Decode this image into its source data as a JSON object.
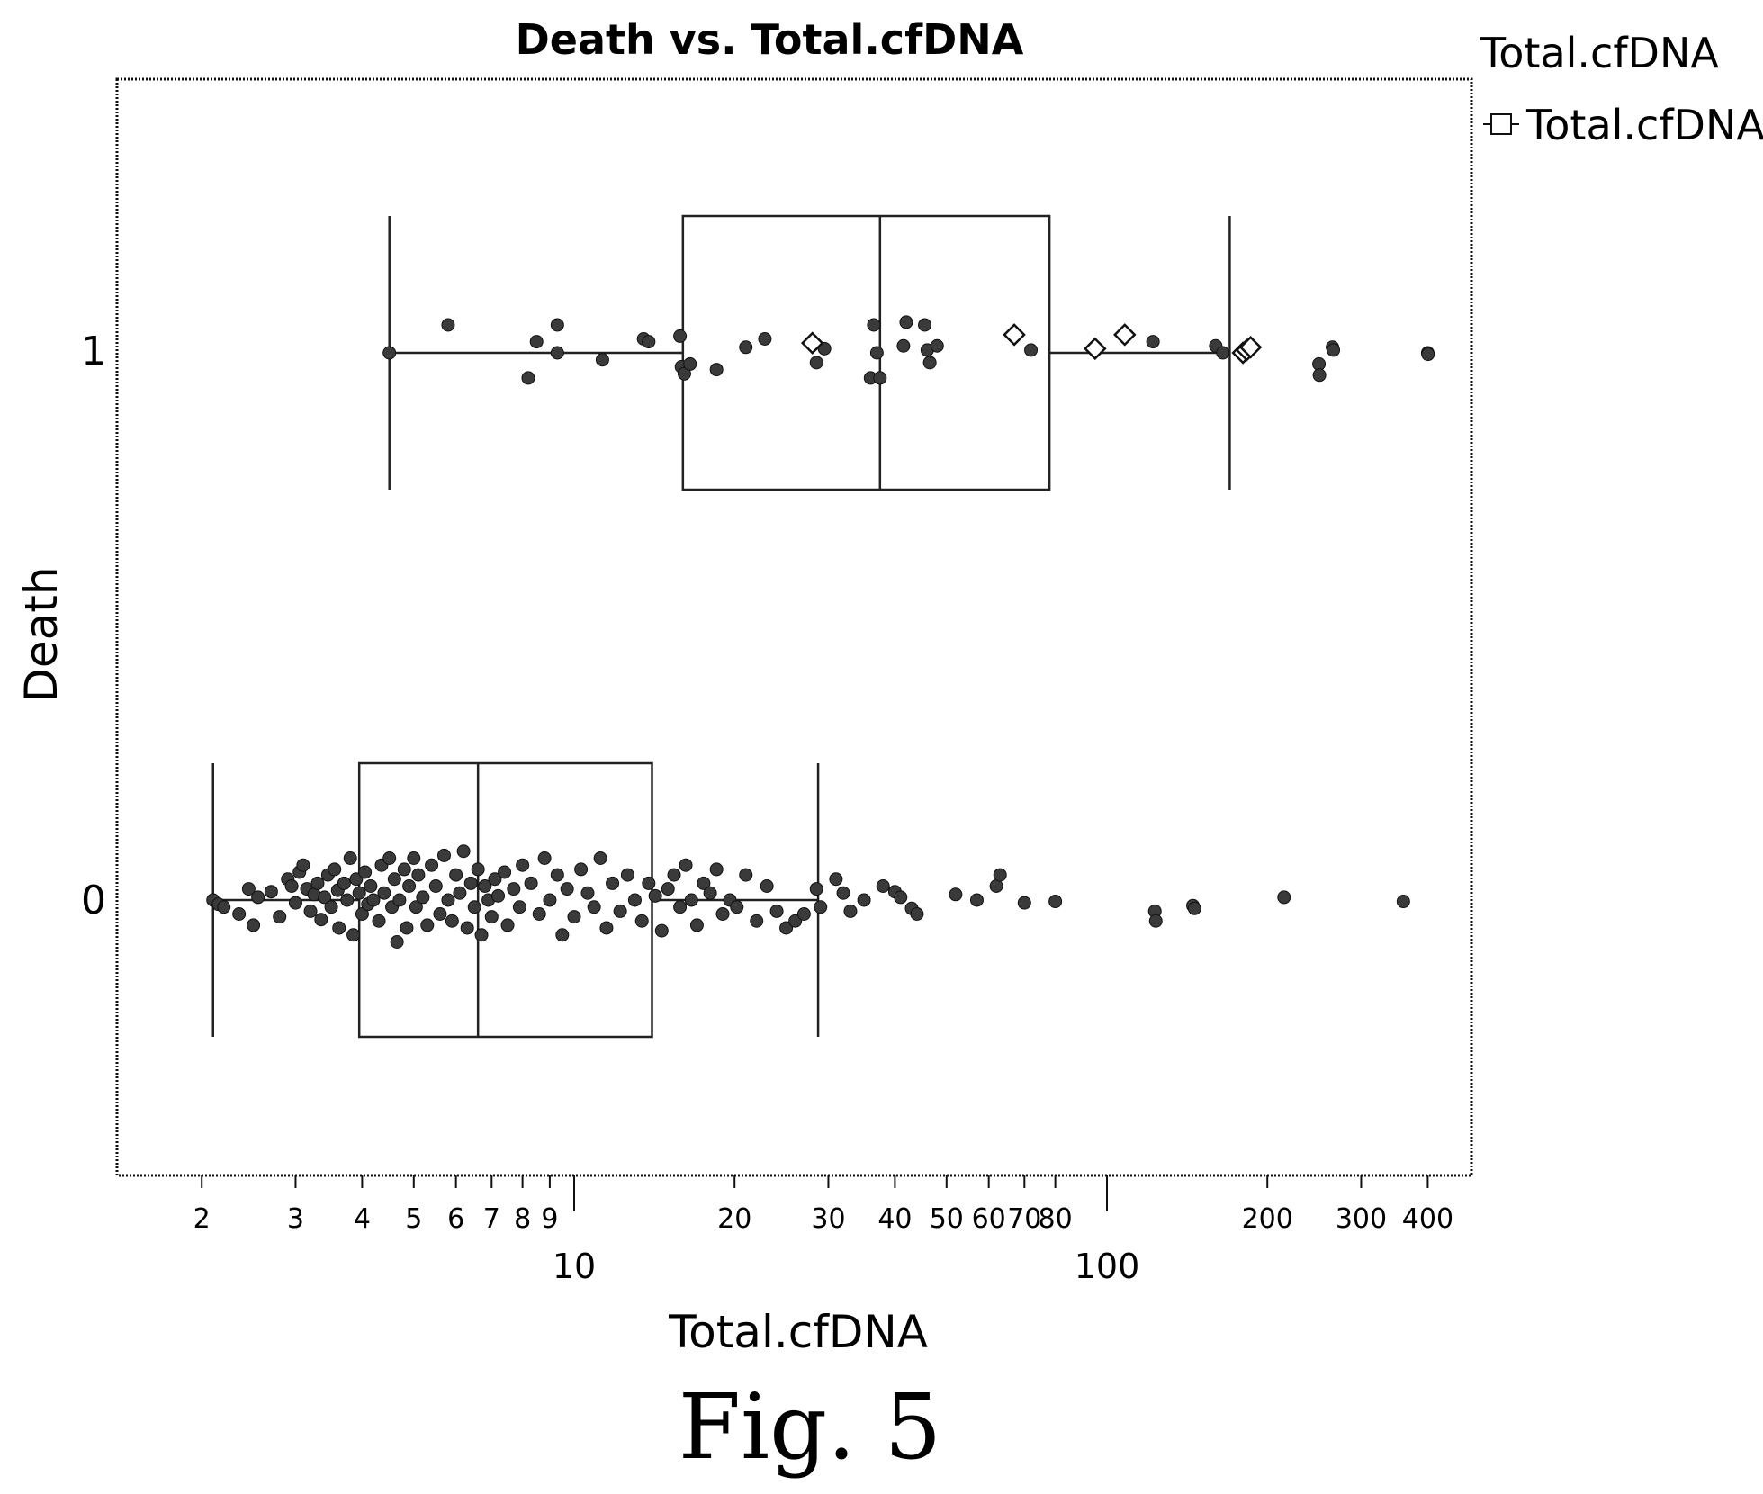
{
  "chart_data": {
    "type": "box",
    "title": "Death vs. Total.cfDNA",
    "xlabel": "Total.cfDNA",
    "ylabel": "Death",
    "xscale": "log",
    "xlim": [
      1.7,
      450
    ],
    "x_minor_ticks": [
      2,
      3,
      4,
      5,
      6,
      7,
      8,
      9,
      20,
      30,
      40,
      50,
      60,
      70,
      80,
      200,
      300,
      400
    ],
    "x_minor_labels": [
      "2",
      "3",
      "4",
      "5",
      "6",
      "7",
      "8",
      "9",
      "20",
      "30",
      "40",
      "50",
      "60",
      "70",
      "80",
      "200",
      "300",
      "400"
    ],
    "x_major_ticks": [
      10,
      100
    ],
    "x_major_labels": [
      "10",
      "100"
    ],
    "categories": [
      "0",
      "1"
    ],
    "legend": {
      "title": "Total.cfDNA",
      "entry": "Total.cfDNA",
      "position": "top-right"
    },
    "boxes": [
      {
        "category": "0",
        "whisker_low": 2.1,
        "q1": 3.95,
        "median": 6.6,
        "q3": 14.0,
        "whisker_high": 28.7
      },
      {
        "category": "1",
        "whisker_low": 4.5,
        "q1": 16.0,
        "median": 37.5,
        "q3": 78.0,
        "whisker_high": 170.0
      }
    ],
    "points": {
      "0": [
        [
          2.1,
          0
        ],
        [
          2.15,
          -0.03
        ],
        [
          2.2,
          -0.05
        ],
        [
          2.35,
          -0.1
        ],
        [
          2.45,
          0.08
        ],
        [
          2.5,
          -0.18
        ],
        [
          2.55,
          0.02
        ],
        [
          2.7,
          0.06
        ],
        [
          2.8,
          -0.12
        ],
        [
          2.9,
          0.15
        ],
        [
          2.95,
          0.1
        ],
        [
          3.0,
          -0.02
        ],
        [
          3.05,
          0.2
        ],
        [
          3.1,
          0.25
        ],
        [
          3.15,
          0.08
        ],
        [
          3.2,
          -0.08
        ],
        [
          3.25,
          0.04
        ],
        [
          3.3,
          0.12
        ],
        [
          3.35,
          -0.14
        ],
        [
          3.4,
          0.02
        ],
        [
          3.45,
          0.18
        ],
        [
          3.5,
          -0.05
        ],
        [
          3.55,
          0.22
        ],
        [
          3.6,
          0.07
        ],
        [
          3.62,
          -0.2
        ],
        [
          3.7,
          0.12
        ],
        [
          3.75,
          0.0
        ],
        [
          3.8,
          0.3
        ],
        [
          3.85,
          -0.25
        ],
        [
          3.9,
          0.15
        ],
        [
          3.95,
          0.05
        ],
        [
          4.0,
          -0.1
        ],
        [
          4.05,
          0.2
        ],
        [
          4.1,
          -0.03
        ],
        [
          4.15,
          0.1
        ],
        [
          4.2,
          0.0
        ],
        [
          4.3,
          -0.15
        ],
        [
          4.35,
          0.25
        ],
        [
          4.4,
          0.05
        ],
        [
          4.5,
          0.3
        ],
        [
          4.55,
          -0.05
        ],
        [
          4.6,
          0.15
        ],
        [
          4.65,
          -0.3
        ],
        [
          4.7,
          0.0
        ],
        [
          4.8,
          0.22
        ],
        [
          4.85,
          -0.2
        ],
        [
          4.9,
          0.1
        ],
        [
          5.0,
          0.3
        ],
        [
          5.05,
          -0.05
        ],
        [
          5.1,
          0.18
        ],
        [
          5.2,
          0.02
        ],
        [
          5.3,
          -0.18
        ],
        [
          5.4,
          0.25
        ],
        [
          5.5,
          0.1
        ],
        [
          5.6,
          -0.1
        ],
        [
          5.7,
          0.32
        ],
        [
          5.8,
          0.0
        ],
        [
          5.9,
          -0.15
        ],
        [
          6.0,
          0.18
        ],
        [
          6.1,
          0.05
        ],
        [
          6.2,
          0.35
        ],
        [
          6.3,
          -0.2
        ],
        [
          6.4,
          0.12
        ],
        [
          6.5,
          -0.05
        ],
        [
          6.6,
          0.22
        ],
        [
          6.7,
          -0.25
        ],
        [
          6.8,
          0.1
        ],
        [
          6.9,
          0.0
        ],
        [
          7.0,
          -0.12
        ],
        [
          7.1,
          0.15
        ],
        [
          7.2,
          0.03
        ],
        [
          7.4,
          0.2
        ],
        [
          7.5,
          -0.18
        ],
        [
          7.7,
          0.08
        ],
        [
          7.9,
          -0.05
        ],
        [
          8.0,
          0.25
        ],
        [
          8.3,
          0.12
        ],
        [
          8.6,
          -0.1
        ],
        [
          8.8,
          0.3
        ],
        [
          9.0,
          0.0
        ],
        [
          9.3,
          0.18
        ],
        [
          9.5,
          -0.25
        ],
        [
          9.7,
          0.08
        ],
        [
          10.0,
          -0.12
        ],
        [
          10.3,
          0.22
        ],
        [
          10.6,
          0.05
        ],
        [
          10.9,
          -0.05
        ],
        [
          11.2,
          0.3
        ],
        [
          11.5,
          -0.2
        ],
        [
          11.8,
          0.12
        ],
        [
          12.2,
          -0.08
        ],
        [
          12.6,
          0.18
        ],
        [
          13.0,
          0.0
        ],
        [
          13.4,
          -0.15
        ],
        [
          13.8,
          0.12
        ],
        [
          14.2,
          0.03
        ],
        [
          14.6,
          -0.22
        ],
        [
          15.0,
          0.08
        ],
        [
          15.4,
          0.18
        ],
        [
          15.8,
          -0.05
        ],
        [
          16.2,
          0.25
        ],
        [
          16.6,
          0.0
        ],
        [
          17.0,
          -0.18
        ],
        [
          17.5,
          0.12
        ],
        [
          18.0,
          0.05
        ],
        [
          18.5,
          0.22
        ],
        [
          19.0,
          -0.1
        ],
        [
          19.6,
          0.0
        ],
        [
          20.2,
          -0.05
        ],
        [
          21.0,
          0.18
        ],
        [
          22.0,
          -0.15
        ],
        [
          23.0,
          0.1
        ],
        [
          24.0,
          -0.08
        ],
        [
          25.0,
          -0.2
        ],
        [
          26.0,
          -0.15
        ],
        [
          27.0,
          -0.1
        ],
        [
          28.5,
          0.08
        ],
        [
          29.0,
          -0.05
        ],
        [
          31.0,
          0.15
        ],
        [
          32.0,
          0.05
        ],
        [
          33.0,
          -0.08
        ],
        [
          35.0,
          0.0
        ],
        [
          38.0,
          0.1
        ],
        [
          40.0,
          0.06
        ],
        [
          41.0,
          0.02
        ],
        [
          43.0,
          -0.06
        ],
        [
          44.0,
          -0.1
        ],
        [
          52.0,
          0.04
        ],
        [
          57.0,
          0.0
        ],
        [
          62.0,
          0.1
        ],
        [
          63.0,
          0.18
        ],
        [
          70.0,
          -0.02
        ],
        [
          80.0,
          -0.01
        ],
        [
          123.0,
          -0.08
        ],
        [
          123.5,
          -0.15
        ],
        [
          145.0,
          -0.04
        ],
        [
          146.0,
          -0.06
        ],
        [
          215.0,
          0.02
        ],
        [
          360.0,
          -0.01
        ]
      ],
      "1": [
        [
          4.5,
          0.0
        ],
        [
          5.8,
          0.2
        ],
        [
          8.2,
          -0.18
        ],
        [
          8.5,
          0.08
        ],
        [
          9.3,
          0.2
        ],
        [
          9.3,
          0.0
        ],
        [
          11.3,
          -0.05
        ],
        [
          13.5,
          0.1
        ],
        [
          13.8,
          0.08
        ],
        [
          15.8,
          0.12
        ],
        [
          15.9,
          -0.1
        ],
        [
          16.1,
          -0.15
        ],
        [
          16.5,
          -0.08
        ],
        [
          18.5,
          -0.12
        ],
        [
          21.0,
          0.04
        ],
        [
          22.8,
          0.1
        ],
        [
          28.5,
          -0.07
        ],
        [
          29.5,
          0.03
        ],
        [
          36.0,
          -0.18
        ],
        [
          36.5,
          0.2
        ],
        [
          37.0,
          0.0
        ],
        [
          37.5,
          -0.18
        ],
        [
          41.5,
          0.05
        ],
        [
          42.0,
          0.22
        ],
        [
          45.5,
          0.2
        ],
        [
          46.0,
          0.02
        ],
        [
          46.5,
          -0.07
        ],
        [
          48.0,
          0.05
        ],
        [
          72.0,
          0.02
        ],
        [
          122.0,
          0.08
        ],
        [
          160.0,
          0.05
        ],
        [
          165.0,
          0.0
        ],
        [
          250.0,
          -0.08
        ],
        [
          250.5,
          -0.16
        ],
        [
          265.0,
          0.04
        ],
        [
          266.0,
          0.02
        ],
        [
          400.0,
          0.0
        ],
        [
          400.5,
          -0.01
        ]
      ]
    },
    "outliers": {
      "1": [
        [
          28.0,
          0.07
        ],
        [
          67.0,
          0.13
        ],
        [
          95.0,
          0.03
        ],
        [
          108.0,
          0.13
        ],
        [
          180.0,
          0.0
        ],
        [
          183.0,
          0.02
        ],
        [
          186.0,
          0.04
        ]
      ]
    }
  },
  "caption": "Fig. 5"
}
